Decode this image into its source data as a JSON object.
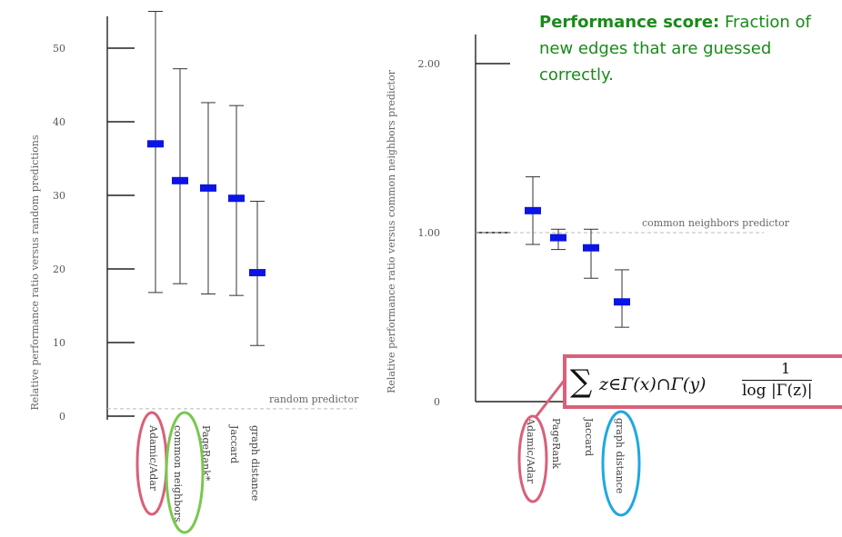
{
  "annotation": {
    "bold": "Performance score:",
    "rest": " Fraction of new edges that are guessed correctly."
  },
  "formula": {
    "sum": "∑",
    "subscript": "z∈Γ(x)∩Γ(y)",
    "numerator": "1",
    "denominator": "log |Γ(z)|"
  },
  "colors": {
    "marker": "#0a14e6",
    "pink": "#d9607a",
    "green": "#7ac74f",
    "blue": "#1fa8e0",
    "annotation": "#1a8a1a"
  },
  "chart_data": [
    {
      "type": "scatter",
      "ylabel": "Relative performance ratio versus random predictions",
      "ylim": [
        0,
        55
      ],
      "yticks": [
        0,
        10,
        20,
        30,
        40,
        50
      ],
      "categories": [
        "Adamic/Adar",
        "common neighbors",
        "PageRank*",
        "Jaccard",
        "graph distance"
      ],
      "values": [
        37,
        32,
        31,
        29.6,
        19.5
      ],
      "error_low": [
        16.8,
        18,
        16.6,
        16.4,
        9.6
      ],
      "error_high": [
        55,
        47.2,
        42.6,
        42.2,
        29.2
      ],
      "reference": {
        "value": 1,
        "label": "random predictor"
      },
      "highlights": {
        "Adamic/Adar": "pink",
        "common neighbors": "green"
      }
    },
    {
      "type": "scatter",
      "ylabel": "Relative performance ratio versus common neighbors predictor",
      "ylim": [
        0,
        2.2
      ],
      "yticks": [
        0,
        1.0,
        2.0
      ],
      "ytick_labels": [
        "0",
        "1.00",
        "2.00"
      ],
      "categories": [
        "Adamic/Adar",
        "PageRank",
        "Jaccard",
        "graph distance"
      ],
      "values": [
        1.13,
        0.97,
        0.91,
        0.59
      ],
      "error_low": [
        0.93,
        0.9,
        0.73,
        0.44
      ],
      "error_high": [
        1.33,
        1.02,
        1.02,
        0.78
      ],
      "reference": {
        "value": 1,
        "label": "common neighbors predictor"
      },
      "highlights": {
        "Adamic/Adar": "pink",
        "graph distance": "blue"
      }
    }
  ]
}
